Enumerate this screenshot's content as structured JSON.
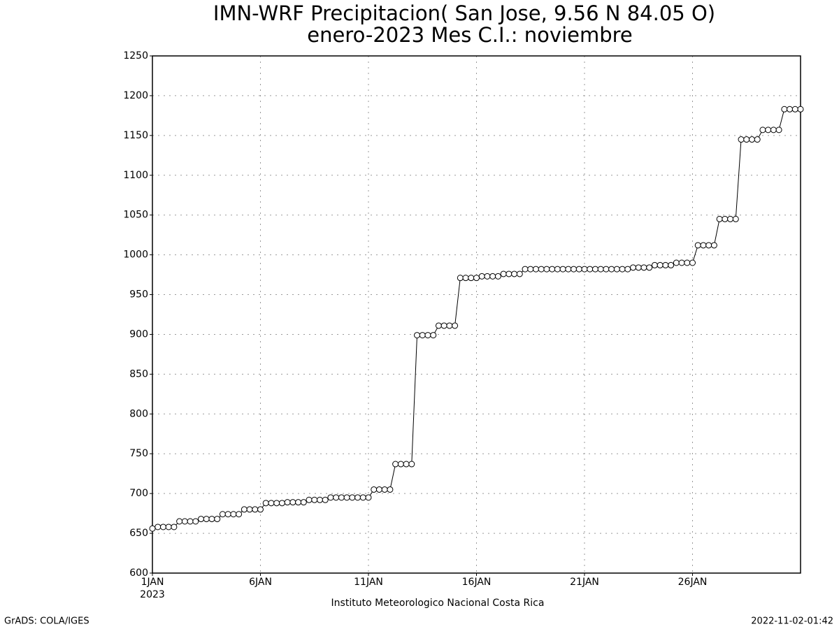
{
  "chart_data": {
    "type": "line",
    "title": "IMN-WRF  Precipitacion( San Jose, 9.56  N 84.05  O)",
    "subtitle": "enero-2023 Mes C.I.: noviembre",
    "xlabel": "Instituto Meteorologico Nacional Costa Rica",
    "xtick_year": "2023",
    "footer_left": "GrADS: COLA/IGES",
    "footer_right": "2022-11-02-01:42",
    "color": "#000000",
    "marker": "circle",
    "grid": true,
    "xlim": [
      1,
      31
    ],
    "xticks": [
      {
        "value": 1,
        "label": "1JAN"
      },
      {
        "value": 6,
        "label": "6JAN"
      },
      {
        "value": 11,
        "label": "11JAN"
      },
      {
        "value": 16,
        "label": "16JAN"
      },
      {
        "value": 21,
        "label": "21JAN"
      },
      {
        "value": 26,
        "label": "26JAN"
      }
    ],
    "ylim": [
      600,
      1250
    ],
    "yticks": [
      600,
      650,
      700,
      750,
      800,
      850,
      900,
      950,
      1000,
      1050,
      1100,
      1150,
      1200,
      1250
    ],
    "x": [
      1,
      1.25,
      1.5,
      1.75,
      2,
      2.25,
      2.5,
      2.75,
      3,
      3.25,
      3.5,
      3.75,
      4,
      4.25,
      4.5,
      4.75,
      5,
      5.25,
      5.5,
      5.75,
      6,
      6.25,
      6.5,
      6.75,
      7,
      7.25,
      7.5,
      7.75,
      8,
      8.25,
      8.5,
      8.75,
      9,
      9.25,
      9.5,
      9.75,
      10,
      10.25,
      10.5,
      10.75,
      11,
      11.25,
      11.5,
      11.75,
      12,
      12.25,
      12.5,
      12.75,
      13,
      13.25,
      13.5,
      13.75,
      14,
      14.25,
      14.5,
      14.75,
      15,
      15.25,
      15.5,
      15.75,
      16,
      16.25,
      16.5,
      16.75,
      17,
      17.25,
      17.5,
      17.75,
      18,
      18.25,
      18.5,
      18.75,
      19,
      19.25,
      19.5,
      19.75,
      20,
      20.25,
      20.5,
      20.75,
      21,
      21.25,
      21.5,
      21.75,
      22,
      22.25,
      22.5,
      22.75,
      23,
      23.25,
      23.5,
      23.75,
      24,
      24.25,
      24.5,
      24.75,
      25,
      25.25,
      25.5,
      25.75,
      26,
      26.25,
      26.5,
      26.75,
      27,
      27.25,
      27.5,
      27.75,
      28,
      28.25,
      28.5,
      28.75,
      29,
      29.25,
      29.5,
      29.75,
      30,
      30.25,
      30.5,
      30.75,
      31
    ],
    "values": [
      656,
      658,
      658,
      658,
      658,
      665,
      665,
      665,
      665,
      668,
      668,
      668,
      668,
      674,
      674,
      674,
      674,
      680,
      680,
      680,
      680,
      688,
      688,
      688,
      688,
      689,
      689,
      689,
      689,
      692,
      692,
      692,
      692,
      695,
      695,
      695,
      695,
      695,
      695,
      695,
      695,
      705,
      705,
      705,
      705,
      737,
      737,
      737,
      737,
      899,
      899,
      899,
      899,
      911,
      911,
      911,
      911,
      971,
      971,
      971,
      971,
      973,
      973,
      973,
      973,
      976,
      976,
      976,
      976,
      982,
      982,
      982,
      982,
      982,
      982,
      982,
      982,
      982,
      982,
      982,
      982,
      982,
      982,
      982,
      982,
      982,
      982,
      982,
      982,
      984,
      984,
      984,
      984,
      987,
      987,
      987,
      987,
      990,
      990,
      990,
      990,
      1012,
      1012,
      1012,
      1012,
      1045,
      1045,
      1045,
      1045,
      1145,
      1145,
      1145,
      1145,
      1157,
      1157,
      1157,
      1157,
      1183,
      1183,
      1183,
      1183
    ]
  }
}
